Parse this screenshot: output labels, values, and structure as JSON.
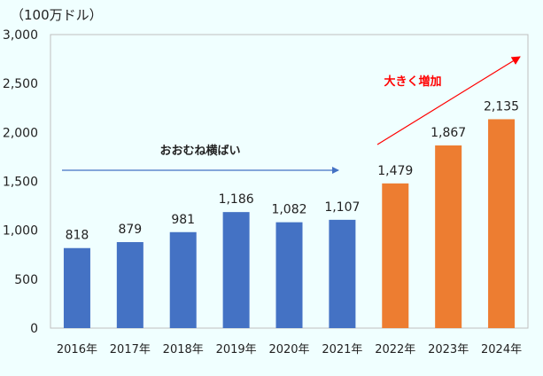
{
  "chart_data": {
    "type": "bar",
    "title": "",
    "unit_label": "（100万ドル）",
    "xlabel": "",
    "ylabel": "100万ドル",
    "ylim": [
      0,
      3000
    ],
    "yticks": [
      0,
      500,
      1000,
      1500,
      2000,
      2500,
      3000
    ],
    "ytick_labels": [
      "0",
      "500",
      "1,000",
      "1,500",
      "2,000",
      "2,500",
      "3,000"
    ],
    "categories": [
      "2016年",
      "2017年",
      "2018年",
      "2019年",
      "2020年",
      "2021年",
      "2022年",
      "2023年",
      "2024年"
    ],
    "values": [
      818,
      879,
      981,
      1186,
      1082,
      1107,
      1479,
      1867,
      2135
    ],
    "value_labels": [
      "818",
      "879",
      "981",
      "1,186",
      "1,082",
      "1,107",
      "1,479",
      "1,867",
      "2,135"
    ],
    "bar_colors": [
      "#4472c4",
      "#4472c4",
      "#4472c4",
      "#4472c4",
      "#4472c4",
      "#4472c4",
      "#ed7d31",
      "#ed7d31",
      "#ed7d31"
    ],
    "grid": false,
    "legend": null,
    "annotations": [
      {
        "text": "おおむね横ばい",
        "color": "#222222",
        "arrow_color": "#4472c4",
        "arrow": "horizontal over 2016–2021"
      },
      {
        "text": "大きく増加",
        "color": "#ff0000",
        "arrow_color": "#ff0000",
        "arrow": "diagonal up over 2022–2024"
      }
    ]
  }
}
